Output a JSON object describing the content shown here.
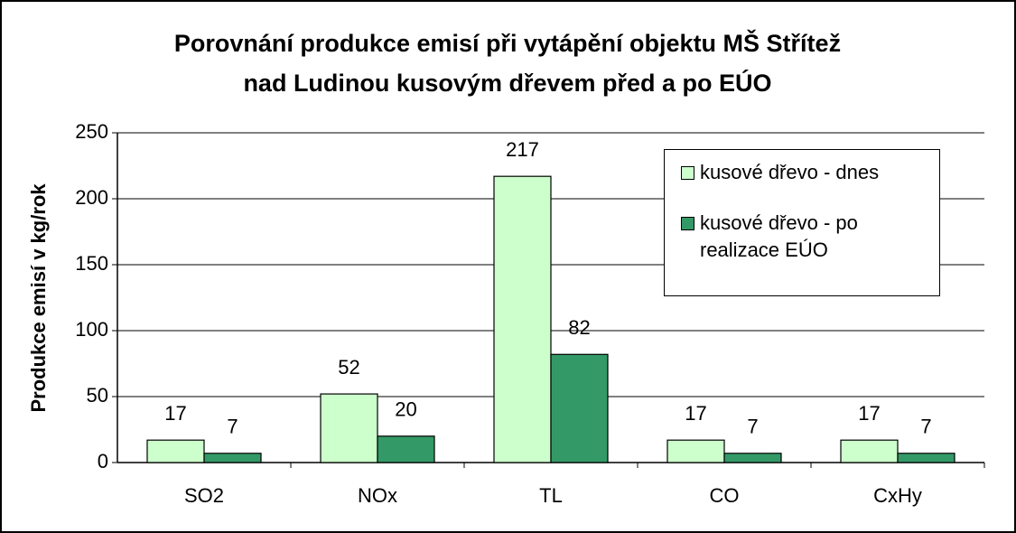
{
  "chart_data": {
    "type": "bar",
    "title": [
      "Porovnání produkce emisí při vytápění objektu MŠ Střítež",
      "nad Ludinou kusovým dřevem před a po EÚO"
    ],
    "y_label": "Produkce emisí v kg/rok",
    "categories": [
      "SO2",
      "NOx",
      "TL",
      "CO",
      "CxHy"
    ],
    "series": [
      {
        "name": "kusové dřevo - dnes",
        "color": "#ccffcc",
        "values": [
          17,
          52,
          217,
          17,
          17
        ]
      },
      {
        "name": "kusové dřevo - po realizace EÚO",
        "color": "#339966",
        "values": [
          7,
          20,
          82,
          7,
          7
        ]
      }
    ],
    "ylim": [
      0,
      250
    ],
    "yticks": [
      0,
      50,
      100,
      150,
      200,
      250
    ],
    "grid": true,
    "legend": "upper right"
  }
}
